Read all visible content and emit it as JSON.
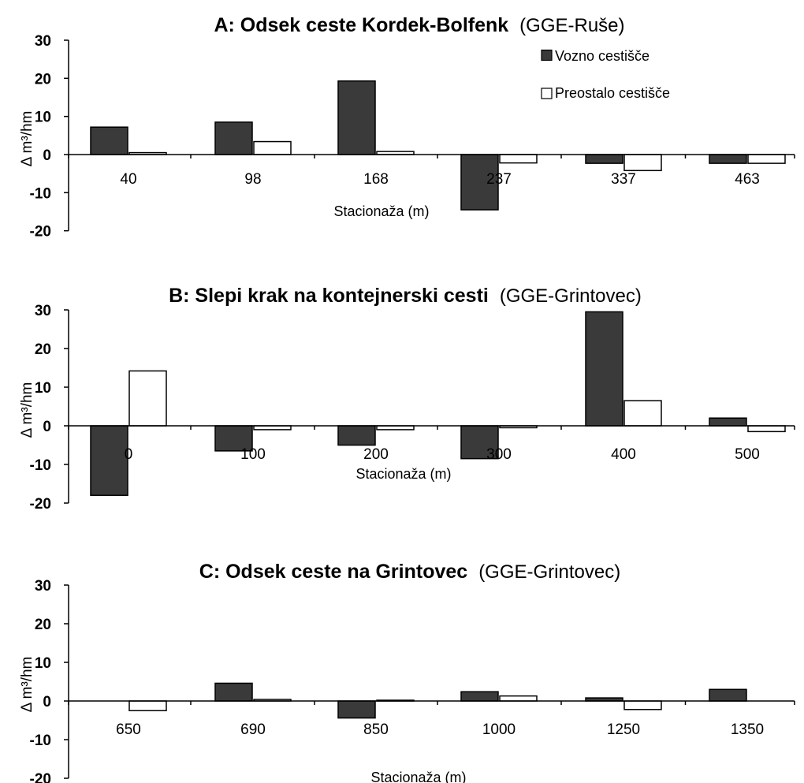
{
  "colors": {
    "vozno": "#3a3a3a",
    "preostalo": "#ffffff",
    "axis": "#000000"
  },
  "chart_data": [
    {
      "type": "bar",
      "title": "A: Odsek ceste Kordek-Bolfenk",
      "title_suffix": "(GGE-Ruše)",
      "xlabel": "Stacionaža (m)",
      "ylabel": "Δ m³/hm",
      "ylim": [
        -20,
        30
      ],
      "yticks": [
        30,
        20,
        10,
        0,
        -10,
        -20
      ],
      "grid": false,
      "legend_position": "top-right",
      "categories": [
        "40",
        "98",
        "168",
        "237",
        "337",
        "463"
      ],
      "series": [
        {
          "name": "Vozno cestišče",
          "values": [
            7.2,
            8.5,
            19.3,
            -14.5,
            -2.3,
            -2.3
          ]
        },
        {
          "name": "Preostalo cestišče",
          "values": [
            0.5,
            3.4,
            0.8,
            -2.2,
            -4.2,
            -2.3
          ]
        }
      ]
    },
    {
      "type": "bar",
      "title": "B: Slepi krak na kontejnerski cesti",
      "title_suffix": "(GGE-Grintovec)",
      "xlabel": "Stacionaža (m)",
      "ylabel": "Δ m³/hm",
      "ylim": [
        -20,
        30
      ],
      "yticks": [
        30,
        20,
        10,
        0,
        -10,
        -20
      ],
      "grid": false,
      "categories": [
        "0",
        "100",
        "200",
        "300",
        "400",
        "500"
      ],
      "series": [
        {
          "name": "Vozno cestišče",
          "values": [
            -18,
            -6.5,
            -5,
            -8.5,
            29.5,
            2
          ]
        },
        {
          "name": "Preostalo cestišče",
          "values": [
            14.2,
            -1,
            -1,
            -0.5,
            6.5,
            -1.5
          ]
        }
      ]
    },
    {
      "type": "bar",
      "title": "C: Odsek ceste na Grintovec",
      "title_suffix": "(GGE-Grintovec)",
      "xlabel": "Stacionaža (m)",
      "ylabel": "Δ m³/hm",
      "ylim": [
        -20,
        30
      ],
      "yticks": [
        30,
        20,
        10,
        0,
        -10,
        -20
      ],
      "grid": false,
      "categories": [
        "650",
        "690",
        "850",
        "1000",
        "1250",
        "1350"
      ],
      "series": [
        {
          "name": "Vozno cestišče",
          "values": [
            0,
            4.6,
            -4.4,
            2.4,
            0.8,
            3
          ]
        },
        {
          "name": "Preostalo cestišče",
          "values": [
            -2.5,
            0.4,
            0.2,
            1.3,
            -2.2,
            0
          ]
        }
      ]
    }
  ]
}
